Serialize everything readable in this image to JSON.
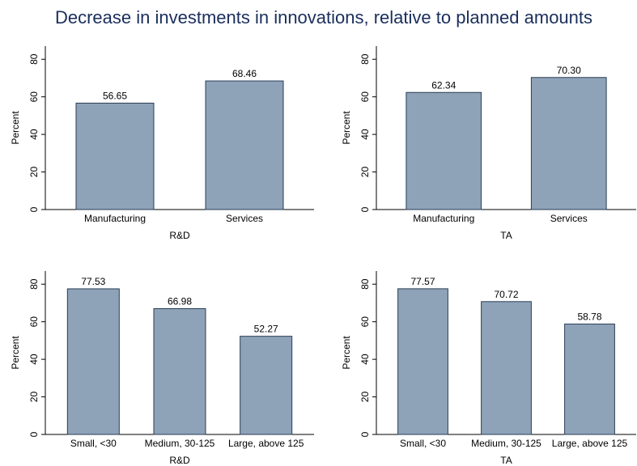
{
  "title": "Decrease in investments in innovations, relative to planned amounts",
  "chart_data": [
    {
      "type": "bar",
      "xlabel": "R&D",
      "ylabel": "Percent",
      "categories": [
        "Manufacturing",
        "Services"
      ],
      "values": [
        56.65,
        68.46
      ],
      "color": "#8ea2b8",
      "ylim": [
        0,
        87
      ],
      "yticks": [
        0,
        20,
        40,
        60,
        80
      ]
    },
    {
      "type": "bar",
      "xlabel": "TA",
      "ylabel": "Percent",
      "categories": [
        "Manufacturing",
        "Services"
      ],
      "values": [
        62.34,
        70.3
      ],
      "value_labels": [
        "62.34",
        "70.30"
      ],
      "color": "#8ea2b8",
      "ylim": [
        0,
        87
      ],
      "yticks": [
        0,
        20,
        40,
        60,
        80
      ]
    },
    {
      "type": "bar",
      "xlabel": "R&D",
      "ylabel": "Percent",
      "categories": [
        "Small, <30",
        "Medium, 30-125",
        "Large, above 125"
      ],
      "values": [
        77.53,
        66.98,
        52.27
      ],
      "color": "#8ea2b8",
      "ylim": [
        0,
        87
      ],
      "yticks": [
        0,
        20,
        40,
        60,
        80
      ]
    },
    {
      "type": "bar",
      "xlabel": "TA",
      "ylabel": "Percent",
      "categories": [
        "Small, <30",
        "Medium, 30-125",
        "Large, above 125"
      ],
      "values": [
        77.57,
        70.72,
        58.78
      ],
      "color": "#8ea2b8",
      "ylim": [
        0,
        87
      ],
      "yticks": [
        0,
        20,
        40,
        60,
        80
      ]
    }
  ]
}
